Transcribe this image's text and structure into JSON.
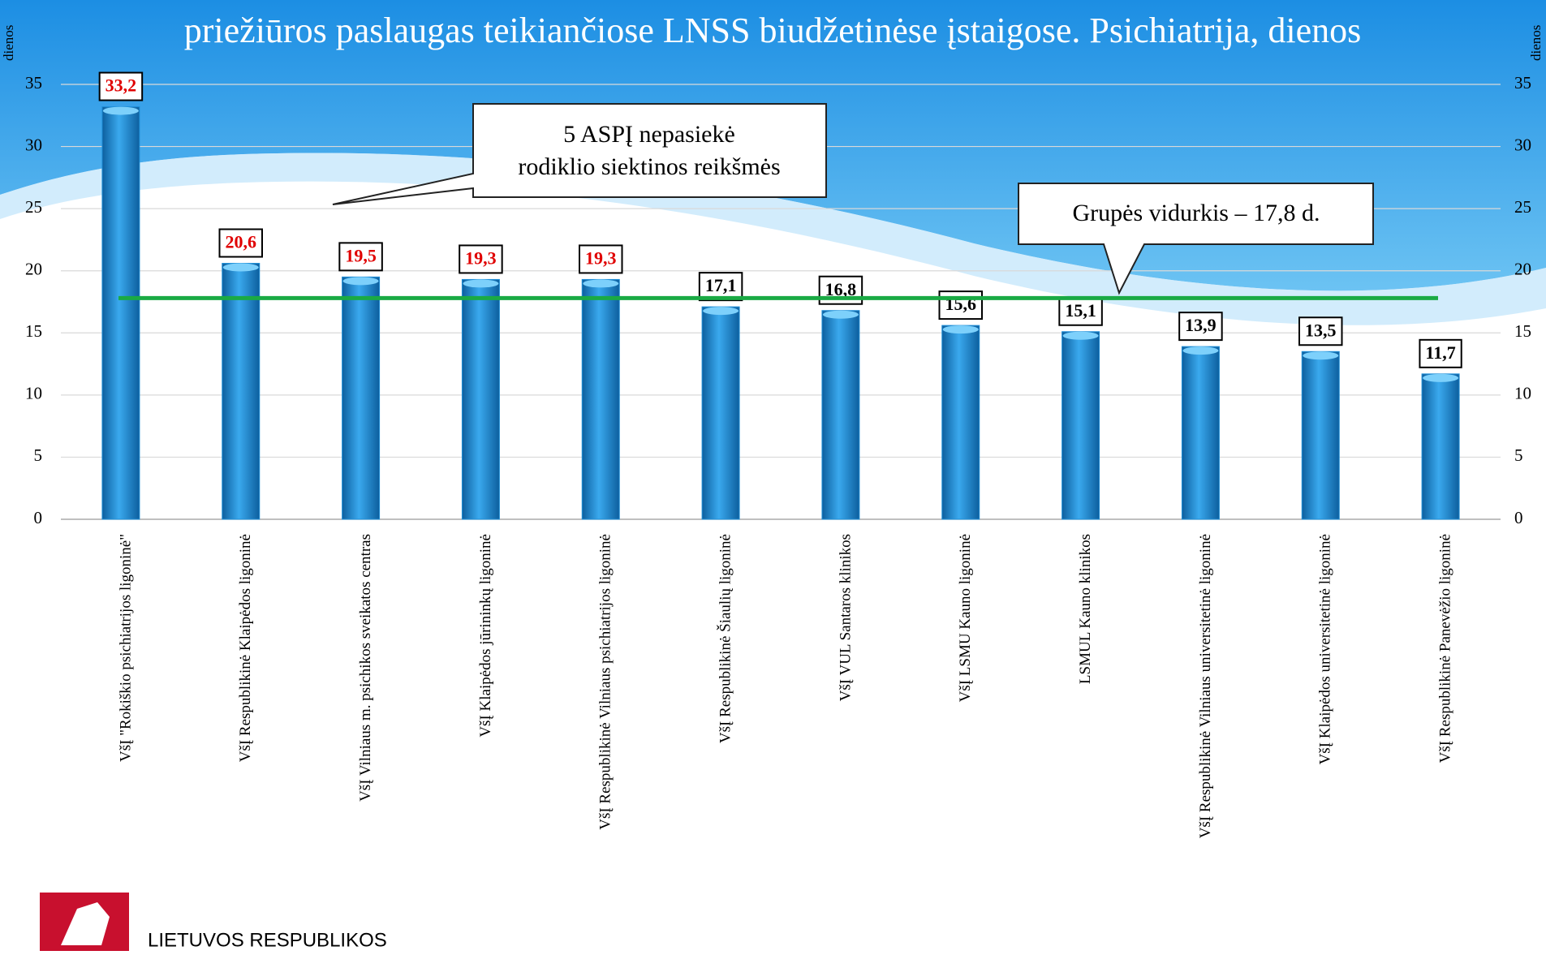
{
  "chart_data": {
    "type": "bar",
    "title": "priežiūros paslaugas teikiančiose LNSS biudžetinėse įstaigose. Psichiatrija, dienos",
    "y_label": "dienos",
    "y2_label": "dienos",
    "categories": [
      "VšĮ \"Rokiškio psichiatrijos ligoninė\"",
      "VšĮ Respublikinė Klaipėdos ligoninė",
      "VšĮ Vilniaus m. psichikos sveikatos centras",
      "VšĮ Klaipėdos jūrininkų ligoninė",
      "VšĮ Respublikinė Vilniaus psichiatrijos ligoninė",
      "VšĮ Respublikinė Šiaulių ligoninė",
      "VšĮ VUL Santaros klinikos",
      "VšĮ LSMU Kauno ligoninė",
      "LSMUL Kauno klinikos",
      "VšĮ Respublikinė Vilniaus universitetinė ligoninė",
      "VšĮ Klaipėdos universitetinė ligoninė",
      "VšĮ Respublikinė Panevėžio ligoninė"
    ],
    "values": [
      33.2,
      20.6,
      19.5,
      19.3,
      19.3,
      17.1,
      16.8,
      15.6,
      15.1,
      13.9,
      13.5,
      11.7
    ],
    "value_labels": [
      "33,2",
      "20,6",
      "19,5",
      "19,3",
      "19,3",
      "17,1",
      "16,8",
      "15,6",
      "15,1",
      "13,9",
      "13,5",
      "11,7"
    ],
    "value_label_colors": [
      "#e00000",
      "#e00000",
      "#e00000",
      "#e00000",
      "#e00000",
      "#000000",
      "#000000",
      "#000000",
      "#000000",
      "#000000",
      "#000000",
      "#000000"
    ],
    "color": "#1f8fd8",
    "average": 17.8,
    "average_color": "#1aaa44",
    "ylim": [
      0,
      35
    ],
    "yticks": [
      0,
      5,
      10,
      15,
      20,
      25,
      30,
      35
    ],
    "y2lim": [
      0,
      35
    ],
    "y2ticks": [
      0,
      5,
      10,
      15,
      20,
      25,
      30,
      35
    ],
    "annotations": [
      "5 ASPĮ nepasiekė rodiklio siektinos reikšmės",
      "Grupės vidurkis – 17,8 d."
    ]
  },
  "footer": "LIETUVOS RESPUBLIKOS"
}
